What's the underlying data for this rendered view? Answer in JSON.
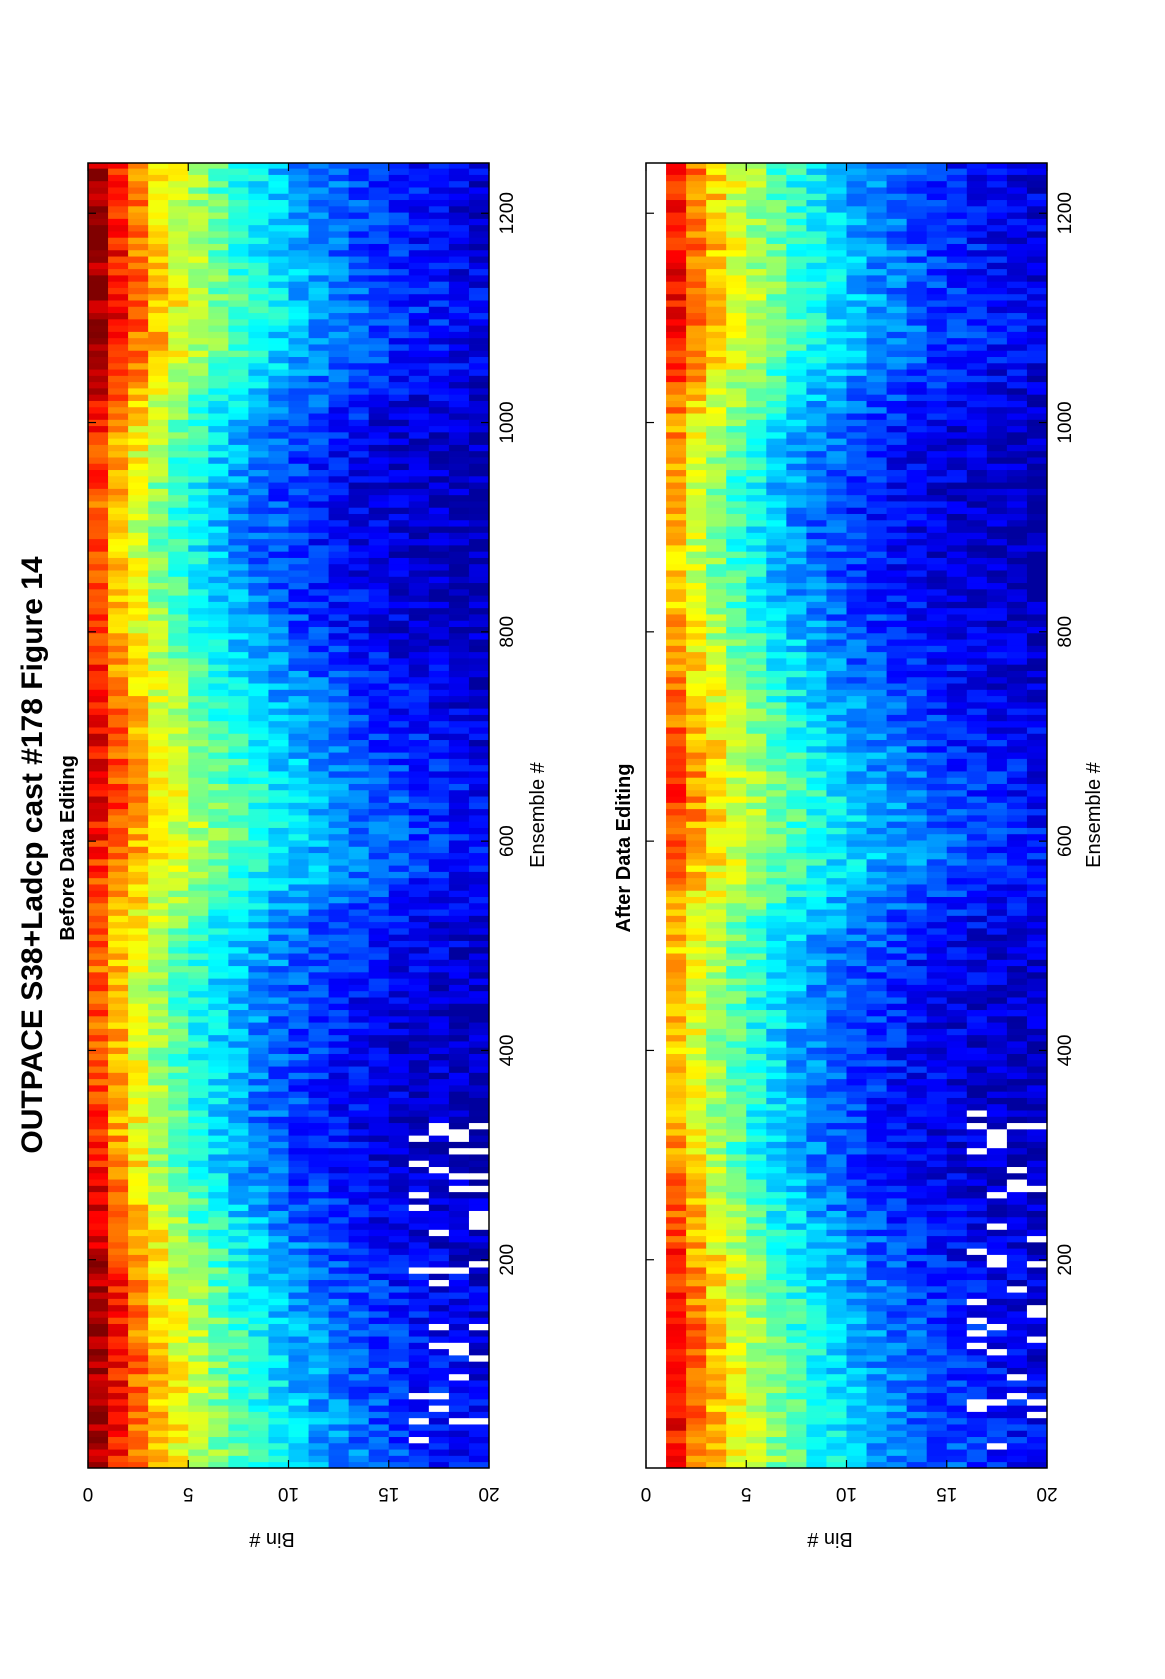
{
  "figure": {
    "title": "OUTPACE S38+Ladcp cast #178  Figure 14"
  },
  "colors": {
    "colormap": "jet",
    "axis": "#000000",
    "background": "#ffffff",
    "dropout": "#ffffff"
  },
  "chart_data": [
    {
      "type": "heatmap",
      "title": "Before Data Editing",
      "xlabel": "Ensemble #",
      "ylabel": "Bin #",
      "xlim": [
        1,
        1248
      ],
      "ylim": [
        0,
        20
      ],
      "xticks": [
        200,
        400,
        600,
        800,
        1000,
        1200
      ],
      "yticks": [
        0,
        5,
        10,
        15,
        20
      ],
      "bins": 20,
      "colormap": "jet",
      "value_scale": "relative (0 = dark blue, 1 = dark red)",
      "profile_keypoints": {
        "ensembles": [
          1,
          60,
          120,
          180,
          240,
          300,
          380,
          460,
          520,
          580,
          640,
          700,
          760,
          820,
          880,
          940,
          1000,
          1060,
          1100,
          1160,
          1248
        ],
        "surface_value": [
          0.95,
          0.97,
          0.97,
          0.96,
          0.92,
          0.85,
          0.8,
          0.78,
          0.78,
          0.83,
          0.9,
          0.88,
          0.84,
          0.8,
          0.78,
          0.8,
          0.85,
          0.95,
          0.98,
          0.97,
          0.96
        ],
        "decay_length_bins": [
          9.5,
          9.0,
          8.5,
          8.0,
          7.0,
          6.5,
          7.0,
          7.5,
          8.5,
          11.0,
          10.0,
          9.0,
          8.0,
          7.0,
          6.5,
          6.5,
          7.0,
          8.5,
          9.0,
          8.5,
          8.0
        ]
      },
      "dropout_ensemble_range": [
        20,
        340
      ],
      "dropout_bins": [
        17,
        20
      ]
    },
    {
      "type": "heatmap",
      "title": "After Data Editing",
      "xlabel": "Ensemble #",
      "ylabel": "Bin #",
      "xlim": [
        1,
        1248
      ],
      "ylim": [
        0,
        20
      ],
      "xticks": [
        200,
        400,
        600,
        800,
        1000,
        1200
      ],
      "yticks": [
        0,
        5,
        10,
        15,
        20
      ],
      "bins": 20,
      "first_bin_removed": true,
      "colormap": "jet",
      "value_scale": "relative (0 = dark blue, 1 = dark red)",
      "profile_keypoints": {
        "ensembles": [
          1,
          60,
          120,
          180,
          240,
          300,
          380,
          460,
          520,
          580,
          640,
          700,
          760,
          820,
          880,
          940,
          1000,
          1060,
          1100,
          1160,
          1248
        ],
        "surface_value": [
          0.95,
          0.97,
          0.97,
          0.96,
          0.92,
          0.85,
          0.8,
          0.78,
          0.78,
          0.83,
          0.9,
          0.88,
          0.84,
          0.8,
          0.78,
          0.8,
          0.85,
          0.95,
          0.98,
          0.97,
          0.96
        ],
        "decay_length_bins": [
          9.5,
          9.0,
          8.5,
          8.0,
          7.0,
          6.5,
          7.0,
          7.5,
          8.5,
          11.0,
          10.0,
          9.0,
          8.0,
          7.0,
          6.5,
          6.5,
          7.0,
          8.5,
          9.0,
          8.5,
          8.0
        ]
      },
      "dropout_ensemble_range": [
        20,
        340
      ],
      "dropout_bins": [
        17,
        20
      ]
    }
  ]
}
